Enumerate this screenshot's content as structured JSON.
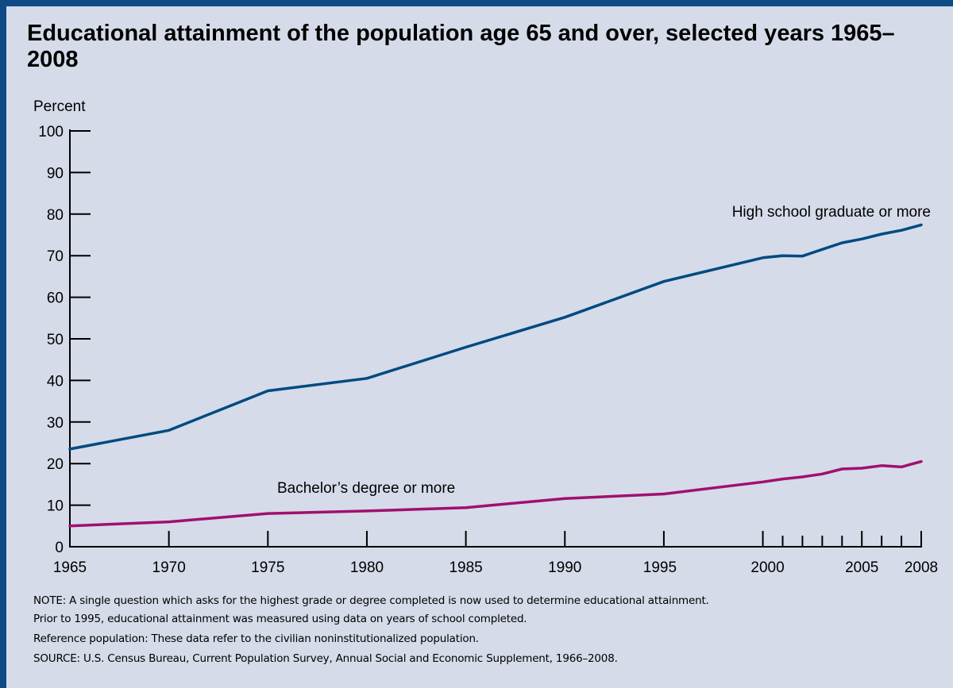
{
  "chart_data": {
    "type": "line",
    "title": "Educational attainment of the population age 65 and over, selected years 1965–2008",
    "ylabel": "Percent",
    "ylim": [
      0,
      100
    ],
    "yticks": [
      0,
      10,
      20,
      30,
      40,
      50,
      60,
      70,
      80,
      90,
      100
    ],
    "xticks_labeled": [
      1965,
      1970,
      1975,
      1980,
      1985,
      1990,
      1995,
      2000,
      2005,
      2008
    ],
    "xticks_minor": [
      2001,
      2002,
      2003,
      2004,
      2006,
      2007
    ],
    "xlim": [
      1965,
      2008
    ],
    "grid": false,
    "series": [
      {
        "name": "High school graduate or more",
        "color": "#004a80",
        "x": [
          1965,
          1970,
          1975,
          1980,
          1985,
          1990,
          1995,
          2000,
          2001,
          2002,
          2003,
          2004,
          2005,
          2006,
          2007,
          2008
        ],
        "values": [
          23.5,
          28.0,
          37.5,
          40.5,
          48.0,
          55.2,
          63.8,
          69.5,
          70.0,
          69.9,
          71.5,
          73.1,
          74.0,
          75.2,
          76.1,
          77.4
        ]
      },
      {
        "name": "Bachelor’s degree or more",
        "color": "#a0106e",
        "x": [
          1965,
          1970,
          1975,
          1980,
          1985,
          1990,
          1995,
          2000,
          2001,
          2002,
          2003,
          2004,
          2005,
          2006,
          2007,
          2008
        ],
        "values": [
          5.0,
          6.0,
          8.0,
          8.6,
          9.4,
          11.6,
          12.7,
          15.6,
          16.3,
          16.8,
          17.5,
          18.7,
          18.9,
          19.5,
          19.2,
          20.5
        ]
      }
    ]
  },
  "notes": {
    "note_line1": "NOTE: A single question which asks for the highest grade or degree completed is now used to determine educational attainment.",
    "note_line2": "Prior to 1995, educational attainment was measured using data on years of school completed.",
    "reference": "Reference population: These data refer to the civilian noninstitutionalized population.",
    "source": "SOURCE: U.S. Census Bureau, Current Population Survey, Annual Social and Economic Supplement, 1966–2008."
  }
}
